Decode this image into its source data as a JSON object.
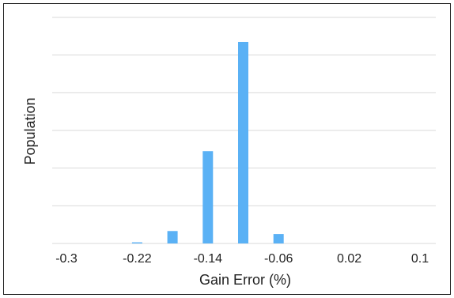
{
  "chart_data": {
    "type": "bar",
    "title": "",
    "xlabel": "Gain Error (%)",
    "ylabel": "Population",
    "x_tick_labels": [
      "-0.3",
      "-0.22",
      "-0.14",
      "-0.06",
      "0.02",
      "0.1"
    ],
    "x_ticks": [
      -0.3,
      -0.22,
      -0.14,
      -0.06,
      0.02,
      0.1
    ],
    "xlim": [
      -0.3,
      0.1
    ],
    "categories": [
      -0.3,
      -0.28,
      -0.26,
      -0.24,
      -0.22,
      -0.2,
      -0.18,
      -0.16,
      -0.14,
      -0.12,
      -0.1,
      -0.08,
      -0.06,
      -0.04,
      -0.02,
      0.0,
      0.02,
      0.04,
      0.06,
      0.08,
      0.1
    ],
    "values": [
      0,
      0,
      0,
      0,
      0.3,
      0,
      3.3,
      0,
      24.5,
      0,
      53.5,
      0,
      2.5,
      0,
      0,
      0,
      0,
      0,
      0,
      0,
      0
    ],
    "ylim": [
      0,
      60
    ],
    "y_gridlines": [
      0,
      10,
      20,
      30,
      40,
      50,
      60
    ],
    "y_tick_labels_visible": false,
    "grid": true,
    "bar_color": "#5AB1F5",
    "grid_color": "#D9D9D9",
    "legend": "none"
  }
}
